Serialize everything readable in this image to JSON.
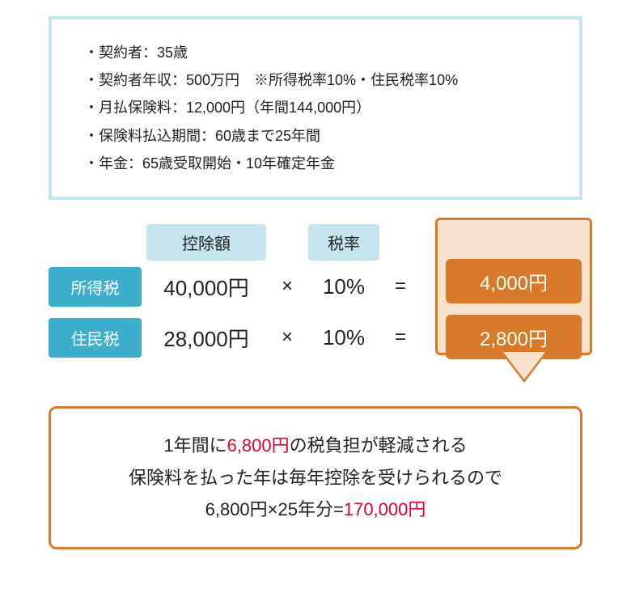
{
  "info": {
    "line1": "・契約者：35歳",
    "line2": "・契約者年収：500万円　※所得税率10%・住民税率10%",
    "line3": "・月払保険料：12,000円（年間144,000円）",
    "line4": "・保険料払込期間：60歳まで25年間",
    "line5": "・年金：65歳受取開始・10年確定年金"
  },
  "headers": {
    "deduction": "控除額",
    "rate": "税率"
  },
  "rows": {
    "income": {
      "label": "所得税",
      "amount": "40,000円",
      "op1": "×",
      "rate": "10%",
      "op2": "=",
      "result": "4,000円"
    },
    "resident": {
      "label": "住民税",
      "amount": "28,000円",
      "op1": "×",
      "rate": "10%",
      "op2": "=",
      "result": "2,800円"
    }
  },
  "summary": {
    "p1a": "1年間に",
    "p1b": "6,800円",
    "p1c": "の税負担が軽減される",
    "p2": "保険料を払った年は毎年控除を受けられるので",
    "p3a": "6,800円×25年分=",
    "p3b": "170,000円"
  }
}
